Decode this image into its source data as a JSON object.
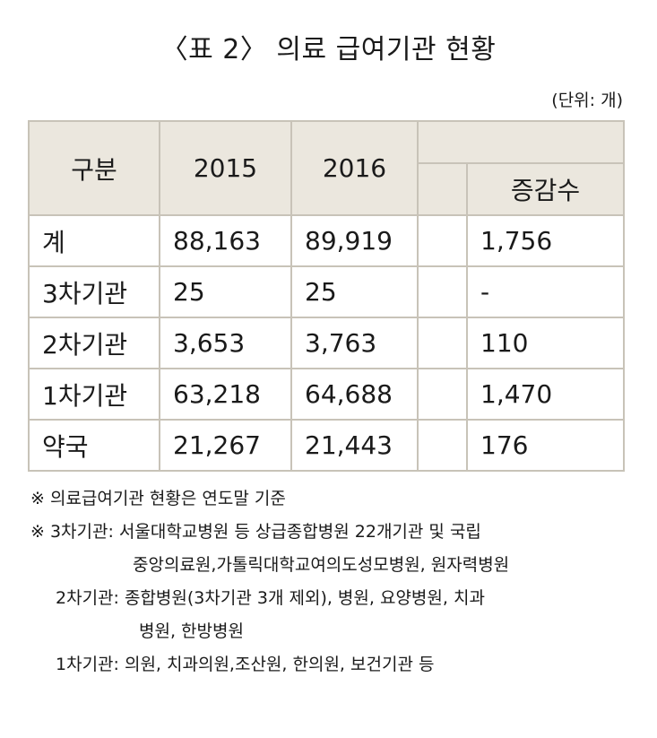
{
  "title": "〈표 2〉 의료 급여기관 현황",
  "unit": "(단위: 개)",
  "table": {
    "headers": {
      "category": "구분",
      "year1": "2015",
      "year2": "2016",
      "change": "증감수"
    },
    "rows": [
      {
        "label": "계",
        "v2015": "88,163",
        "v2016": "89,919",
        "change": "1,756"
      },
      {
        "label": "3차기관",
        "v2015": "25",
        "v2016": "25",
        "change": "-"
      },
      {
        "label": "2차기관",
        "v2015": "3,653",
        "v2016": "3,763",
        "change": "110"
      },
      {
        "label": "1차기관",
        "v2015": "63,218",
        "v2016": "64,688",
        "change": "1,470"
      },
      {
        "label": "약국",
        "v2015": "21,267",
        "v2016": "21,443",
        "change": "176"
      }
    ]
  },
  "notes": {
    "note1": "※ 의료급여기관 현황은 연도말 기준",
    "note2_line1": "※ 3차기관: 서울대학교병원 등 상급종합병원 22개기관 및 국립",
    "note2_line2": "중앙의료원,가톨릭대학교여의도성모병원, 원자력병원",
    "note3_line1": "2차기관: 종합병원(3차기관 3개 제외), 병원, 요양병원, 치과",
    "note3_line2": "병원, 한방병원",
    "note4": "1차기관: 의원, 치과의원,조산원, 한의원, 보건기관 등"
  }
}
